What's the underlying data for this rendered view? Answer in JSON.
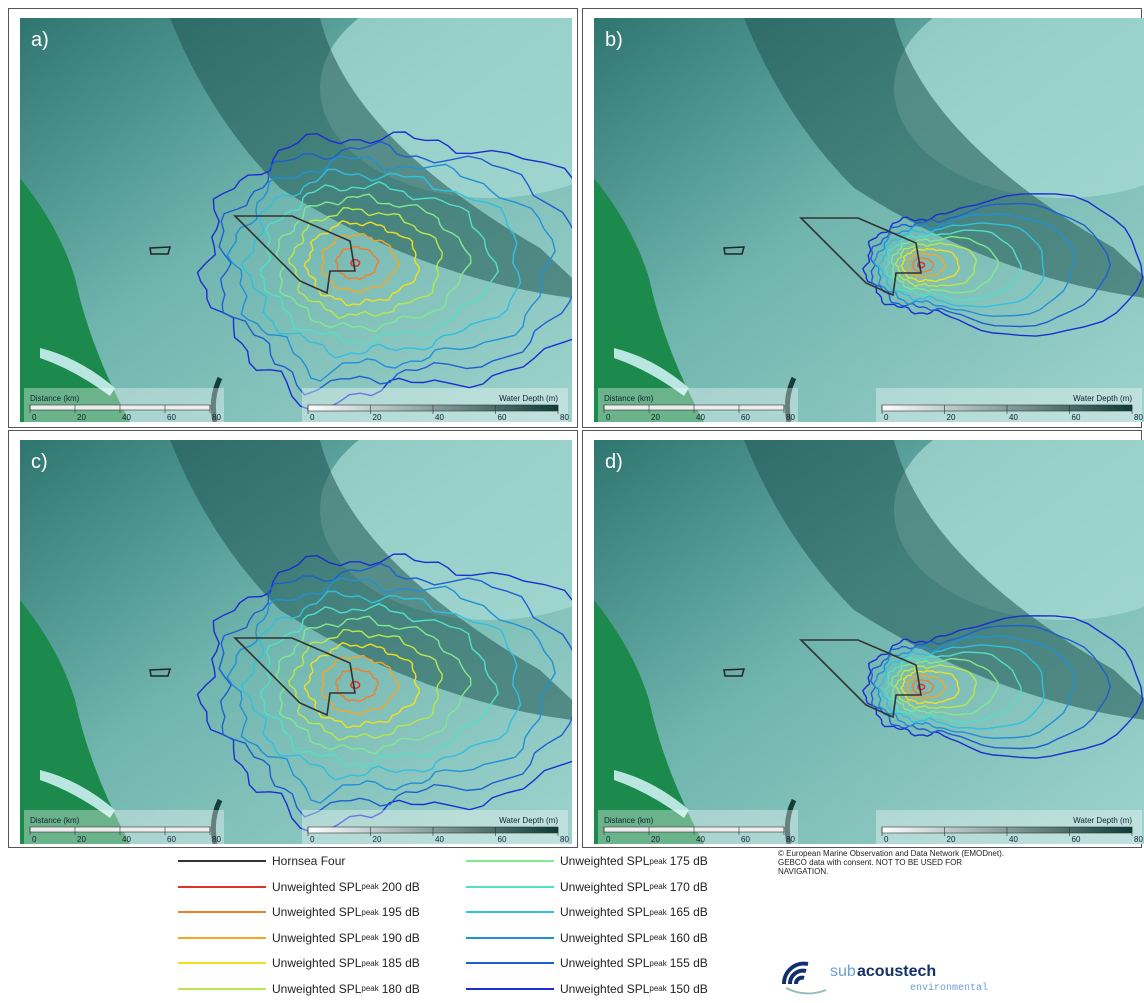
{
  "panels": [
    {
      "label": "a)"
    },
    {
      "label": "b)"
    },
    {
      "label": "c)"
    },
    {
      "label": "d)"
    }
  ],
  "distance_scale": {
    "title": "Distance (km)",
    "ticks": [
      0,
      20,
      40,
      60,
      80
    ]
  },
  "depth_scale": {
    "title": "Water Depth (m)",
    "ticks": [
      0,
      20,
      40,
      60,
      80
    ]
  },
  "legend": [
    {
      "name": "Hornsea Four",
      "color": "#333333"
    },
    {
      "name": "Unweighted SPL",
      "sub": "peak",
      "level": "200 dB",
      "color": "#e0332a"
    },
    {
      "name": "Unweighted SPL",
      "sub": "peak",
      "level": "195 dB",
      "color": "#f07f2c"
    },
    {
      "name": "Unweighted SPL",
      "sub": "peak",
      "level": "190 dB",
      "color": "#f5a623"
    },
    {
      "name": "Unweighted SPL",
      "sub": "peak",
      "level": "185 dB",
      "color": "#f0e020"
    },
    {
      "name": "Unweighted SPL",
      "sub": "peak",
      "level": "180 dB",
      "color": "#b8e84a"
    },
    {
      "name": "Unweighted SPL",
      "sub": "peak",
      "level": "175 dB",
      "color": "#80e890"
    },
    {
      "name": "Unweighted SPL",
      "sub": "peak",
      "level": "170 dB",
      "color": "#50e0c8"
    },
    {
      "name": "Unweighted SPL",
      "sub": "peak",
      "level": "165 dB",
      "color": "#30c0e0"
    },
    {
      "name": "Unweighted SPL",
      "sub": "peak",
      "level": "160 dB",
      "color": "#2090d8"
    },
    {
      "name": "Unweighted SPL",
      "sub": "peak",
      "level": "155 dB",
      "color": "#1e5fd0"
    },
    {
      "name": "Unweighted SPL",
      "sub": "peak",
      "level": "150 dB",
      "color": "#1a2fd0"
    }
  ],
  "copyright": "© European Marine Observation and Data Network (EMODnet). GEBCO data with consent. NOT TO BE USED FOR NAVIGATION.",
  "logo": {
    "prefix": "sub",
    "brand": "acoustech",
    "tagline": "environmental"
  }
}
